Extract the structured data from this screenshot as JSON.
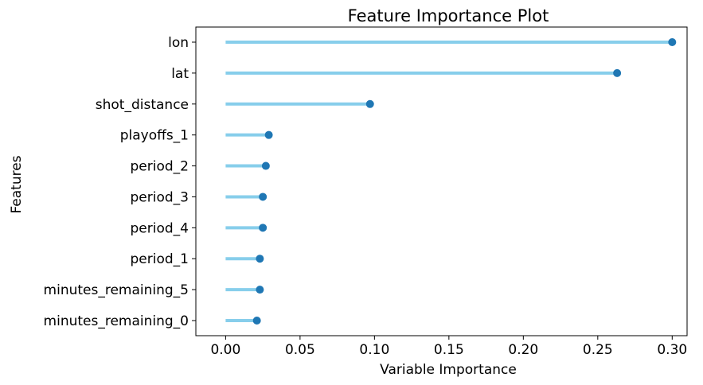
{
  "chart_data": {
    "type": "lollipop",
    "title": "Feature Importance Plot",
    "xlabel": "Variable Importance",
    "ylabel": "Features",
    "xlim": [
      -0.02,
      0.31
    ],
    "xticks": [
      0.0,
      0.05,
      0.1,
      0.15,
      0.2,
      0.25,
      0.3
    ],
    "xtick_labels": [
      "0.00",
      "0.05",
      "0.10",
      "0.15",
      "0.20",
      "0.25",
      "0.30"
    ],
    "grid": false,
    "legend": "none",
    "categories": [
      "lon",
      "lat",
      "shot_distance",
      "playoffs_1",
      "period_2",
      "period_3",
      "period_4",
      "period_1",
      "minutes_remaining_5",
      "minutes_remaining_0"
    ],
    "values": [
      0.3,
      0.263,
      0.097,
      0.029,
      0.027,
      0.025,
      0.025,
      0.023,
      0.023,
      0.021
    ],
    "colors": {
      "stem": "#87ceeb",
      "marker": "#1f77b4"
    }
  }
}
